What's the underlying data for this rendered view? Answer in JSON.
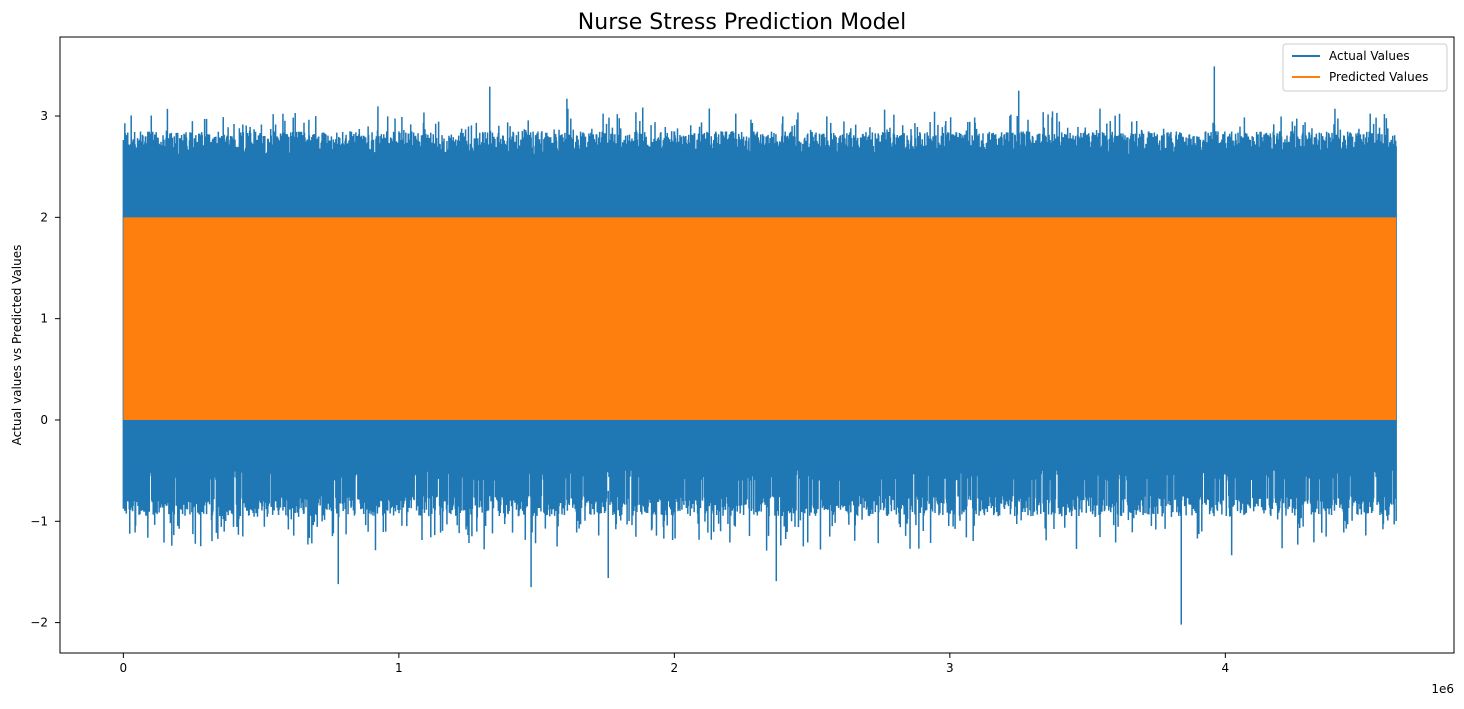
{
  "chart_data": {
    "type": "line",
    "title": "Nurse Stress Prediction Model",
    "xlabel": "",
    "ylabel": "Actual values vs Predicted Values",
    "x_offset_text": "1e6",
    "xlim": [
      -230000,
      4830000
    ],
    "ylim": [
      -2.3,
      3.78
    ],
    "x_ticks": [
      0,
      1,
      2,
      3,
      4
    ],
    "x_tick_labels": [
      "0",
      "1",
      "2",
      "3",
      "4"
    ],
    "y_ticks": [
      -2,
      -1,
      0,
      1,
      2,
      3
    ],
    "y_tick_labels": [
      "−2",
      "−1",
      "0",
      "1",
      "2",
      "3"
    ],
    "x_range": [
      0,
      4620000
    ],
    "grid": false,
    "legend_position": "upper right",
    "series": [
      {
        "name": "Actual Values",
        "color": "#1f77b4",
        "band_min": -2.02,
        "band_max": 3.49,
        "typical_high": 2.6,
        "typical_low": -0.75,
        "notable_peaks": [
          {
            "x": 1330000,
            "y": 3.29
          },
          {
            "x": 3250000,
            "y": 3.25
          },
          {
            "x": 3960000,
            "y": 3.49
          },
          {
            "x": 1610000,
            "y": 3.17
          }
        ],
        "notable_troughs": [
          {
            "x": 3840000,
            "y": -2.02
          },
          {
            "x": 1480000,
            "y": -1.65
          },
          {
            "x": 780000,
            "y": -1.62
          },
          {
            "x": 2370000,
            "y": -1.59
          },
          {
            "x": 1760000,
            "y": -1.56
          }
        ]
      },
      {
        "name": "Predicted Values",
        "color": "#ff7f0e",
        "band_min": 0,
        "band_max": 2
      }
    ]
  }
}
